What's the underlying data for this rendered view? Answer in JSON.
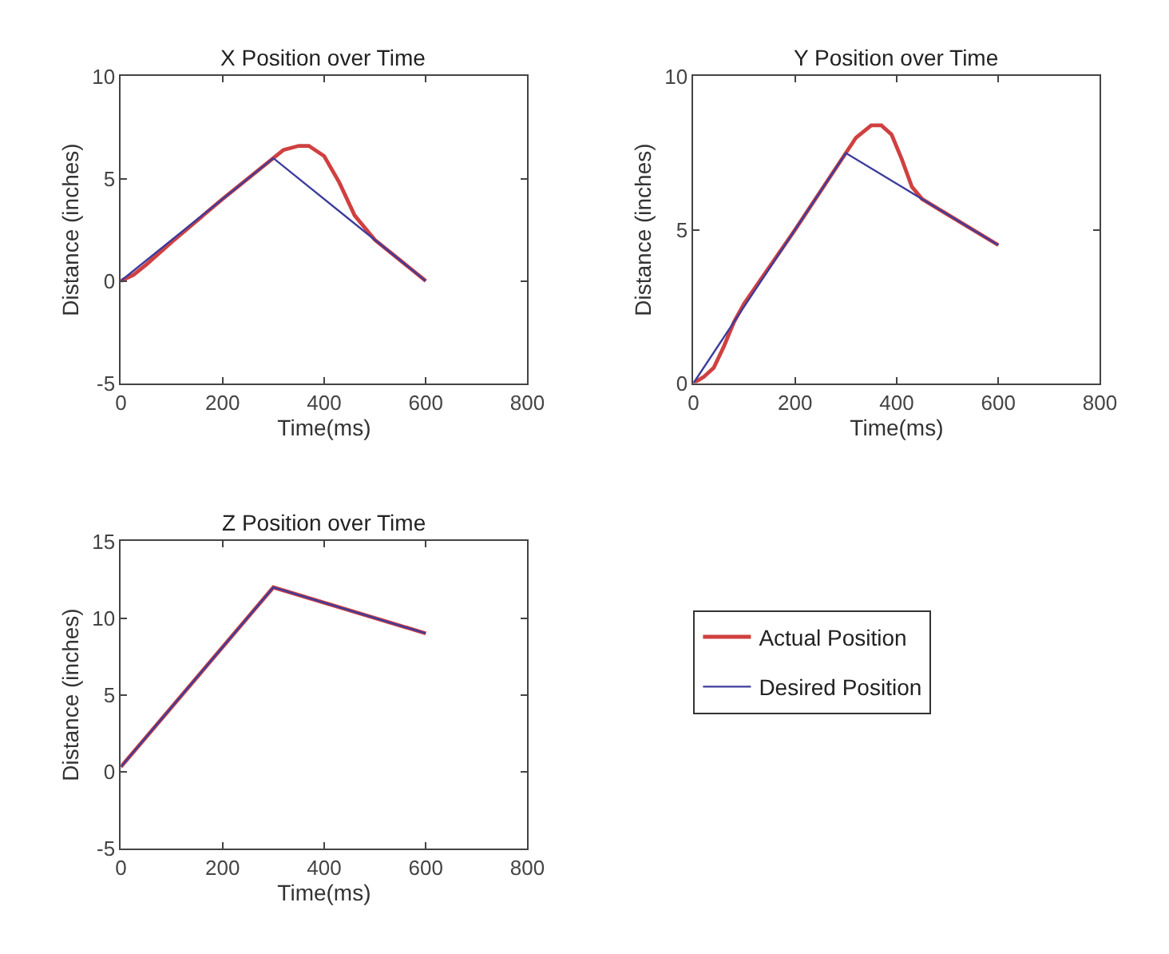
{
  "chart_data": [
    {
      "type": "line",
      "title": "X Position over Time",
      "xlabel": "Time(ms)",
      "ylabel": "Distance (inches)",
      "xlim": [
        0,
        800
      ],
      "xticks": [
        0,
        200,
        400,
        600,
        800
      ],
      "ylim": [
        -5,
        10
      ],
      "yticks": [
        -5,
        0,
        5,
        10
      ],
      "legend": "right",
      "series": [
        {
          "name": "Actual Position",
          "color": "#d04040",
          "x": [
            0,
            25,
            50,
            100,
            200,
            300,
            320,
            350,
            370,
            400,
            430,
            460,
            480,
            500,
            600
          ],
          "values": [
            0,
            0.3,
            0.8,
            1.9,
            4,
            6,
            6.4,
            6.6,
            6.6,
            6.1,
            4.8,
            3.2,
            2.6,
            2.0,
            0
          ]
        },
        {
          "name": "Desired Position",
          "color": "#3c3c9c",
          "x": [
            0,
            300,
            600
          ],
          "values": [
            0,
            6,
            0
          ]
        }
      ]
    },
    {
      "type": "line",
      "title": "Y Position over Time",
      "xlabel": "Time(ms)",
      "ylabel": "Distance (inches)",
      "xlim": [
        0,
        800
      ],
      "xticks": [
        0,
        200,
        400,
        600,
        800
      ],
      "ylim": [
        0,
        10
      ],
      "yticks": [
        0,
        5,
        10
      ],
      "legend": "right",
      "series": [
        {
          "name": "Actual Position",
          "color": "#d04040",
          "x": [
            0,
            20,
            40,
            60,
            80,
            100,
            200,
            300,
            320,
            350,
            370,
            390,
            410,
            430,
            450,
            500,
            600
          ],
          "values": [
            0,
            0.2,
            0.5,
            1.2,
            2.0,
            2.6,
            5.0,
            7.5,
            8.0,
            8.4,
            8.4,
            8.1,
            7.3,
            6.4,
            6.0,
            5.5,
            4.5
          ]
        },
        {
          "name": "Desired Position",
          "color": "#3c3c9c",
          "x": [
            0,
            300,
            600
          ],
          "values": [
            0,
            7.5,
            4.5
          ]
        }
      ]
    },
    {
      "type": "line",
      "title": "Z Position over Time",
      "xlabel": "Time(ms)",
      "ylabel": "Distance (inches)",
      "xlim": [
        0,
        800
      ],
      "xticks": [
        0,
        200,
        400,
        600,
        800
      ],
      "ylim": [
        -5,
        15
      ],
      "yticks": [
        -5,
        0,
        5,
        10,
        15
      ],
      "legend": "right",
      "series": [
        {
          "name": "Actual Position",
          "color": "#d04040",
          "x": [
            0,
            300,
            600
          ],
          "values": [
            0.3,
            12,
            9
          ]
        },
        {
          "name": "Desired Position",
          "color": "#3c3c9c",
          "x": [
            0,
            300,
            600
          ],
          "values": [
            0.3,
            12,
            9
          ]
        }
      ]
    }
  ]
}
